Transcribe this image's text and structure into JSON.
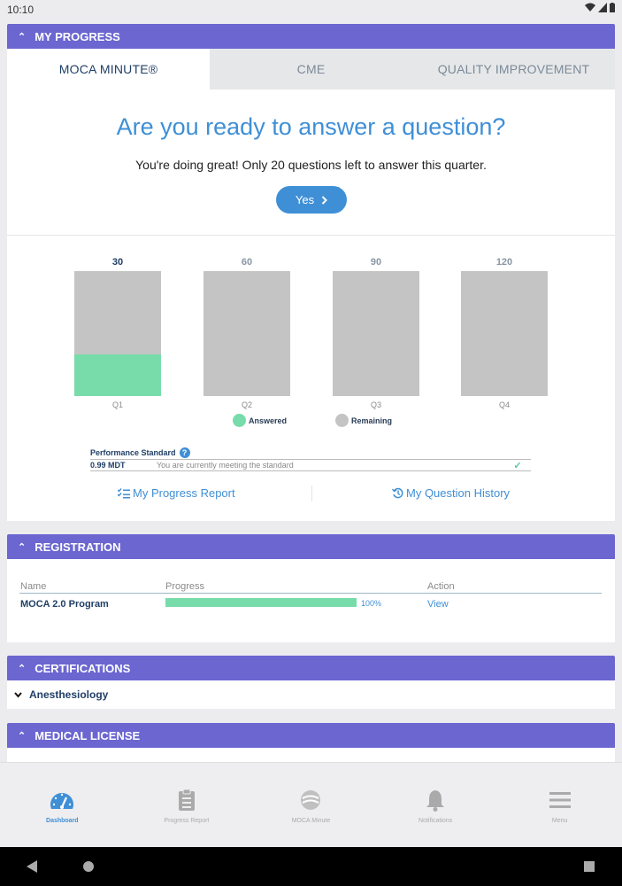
{
  "status_bar": {
    "time": "10:10"
  },
  "my_progress": {
    "header": "MY PROGRESS",
    "tabs": [
      {
        "label": "MOCA MINUTE®",
        "active": true
      },
      {
        "label": "CME",
        "active": false
      },
      {
        "label": "QUALITY IMPROVEMENT",
        "active": false
      }
    ],
    "question_title": "Are you ready to answer a question?",
    "question_subtitle": "You're doing great! Only 20 questions left to answer this quarter.",
    "yes_label": "Yes",
    "chart_data": {
      "type": "bar",
      "categories": [
        "Q1",
        "Q2",
        "Q3",
        "Q4"
      ],
      "goals": [
        30,
        60,
        90,
        120
      ],
      "series": [
        {
          "name": "Answered",
          "values": [
            10,
            0,
            0,
            0
          ],
          "color": "#77dcaa"
        },
        {
          "name": "Remaining",
          "values": [
            20,
            60,
            90,
            120
          ],
          "color": "#c4c4c4"
        }
      ]
    },
    "legend": {
      "answered": "Answered",
      "remaining": "Remaining",
      "answered_color": "#77dcaa",
      "remaining_color": "#c4c4c4"
    },
    "performance": {
      "title": "Performance Standard",
      "value": "0.99 MDT",
      "message": "You are currently meeting the standard"
    },
    "links": {
      "progress_report": "My Progress Report",
      "question_history": "My Question History"
    }
  },
  "registration": {
    "header": "REGISTRATION",
    "columns": [
      "Name",
      "Progress",
      "Action"
    ],
    "rows": [
      {
        "name": "MOCA 2.0 Program",
        "progress": 1.0,
        "progress_text": "100%",
        "action": "View"
      }
    ]
  },
  "certifications": {
    "header": "CERTIFICATIONS",
    "items": [
      "Anesthesiology"
    ]
  },
  "medical_license": {
    "header": "MEDICAL LICENSE"
  },
  "bottom_nav": [
    {
      "label": "Dashboard",
      "icon": "dashboard-icon",
      "active": true
    },
    {
      "label": "Progress Report",
      "icon": "clipboard-icon",
      "active": false
    },
    {
      "label": "MOCA Minute",
      "icon": "moca-minute-icon",
      "active": false
    },
    {
      "label": "Notifications",
      "icon": "bell-icon",
      "active": false
    },
    {
      "label": "Menu",
      "icon": "menu-icon",
      "active": false
    }
  ],
  "colors": {
    "accent": "#3f8fd6",
    "header": "#6b66d0",
    "success": "#77dcaa",
    "navy": "#1f3f66"
  }
}
